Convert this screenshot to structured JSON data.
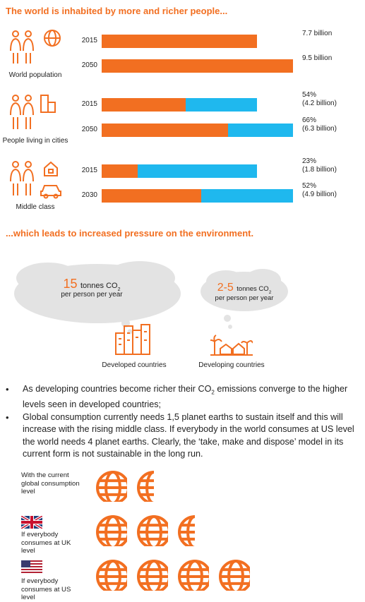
{
  "headline1": "The world is inhabited by more and richer people...",
  "headline2": "...which leads to increased pressure on the environment.",
  "groups": [
    {
      "label": "World population",
      "icon": "people-globe-icon",
      "rows": [
        {
          "year": "2015",
          "value_line1": "7.7 billion",
          "value_line2": "",
          "total": 7.7,
          "share": 1.0
        },
        {
          "year": "2050",
          "value_line1": "9.5 billion",
          "value_line2": "",
          "total": 9.5,
          "share": 1.0
        }
      ]
    },
    {
      "label": "People living in cities",
      "icon": "people-city-icon",
      "rows": [
        {
          "year": "2015",
          "value_line1": "54%",
          "value_line2": "(4.2 billion)",
          "total": 7.7,
          "share": 0.54
        },
        {
          "year": "2050",
          "value_line1": "66%",
          "value_line2": "(6.3 billion)",
          "total": 9.5,
          "share": 0.66
        }
      ]
    },
    {
      "label": "Middle class",
      "icon": "people-house-car-icon",
      "rows": [
        {
          "year": "2015",
          "value_line1": "23%",
          "value_line2": "(1.8 billion)",
          "total": 7.7,
          "share": 0.23
        },
        {
          "year": "2030",
          "value_line1": "52%",
          "value_line2": "(4.9 billion)",
          "total": 9.5,
          "share": 0.52
        }
      ]
    }
  ],
  "developed": {
    "number": "15",
    "unit": "tonnes CO",
    "sub": "2",
    "per": "per person per year",
    "caption": "Developed countries",
    "icon": "city-buildings-icon"
  },
  "developing": {
    "number": "2-5",
    "unit": "tonnes CO",
    "sub": "2",
    "per": "per person per year",
    "caption": "Developing countries",
    "icon": "village-palm-icon"
  },
  "bullets": {
    "b1_part1": "As developing countries become richer their CO",
    "b1_sub": "2",
    "b1_part2": " emissions converge to the higher levels seen in developed countries;",
    "b2": "Global consumption currently needs 1,5 planet earths to sustain itself and this will increase with the rising middle class. If everybody in the world consumes at US level the world needs 4 planet earths. Clearly, the ‘take, make and dispose’ model in its current form is not sustainable in the long run."
  },
  "consumption": [
    {
      "label": "With the current global consumption level",
      "flag": "",
      "earths": 1.5
    },
    {
      "label": "If everybody consumes at UK level",
      "flag": "uk-flag-icon",
      "earths": 2.5
    },
    {
      "label": "If everybody consumes at US level",
      "flag": "us-flag-icon",
      "earths": 4
    }
  ],
  "colors": {
    "orange": "#F26F21",
    "blue": "#1FB8EE",
    "cloud": "#E3E3E3"
  }
}
